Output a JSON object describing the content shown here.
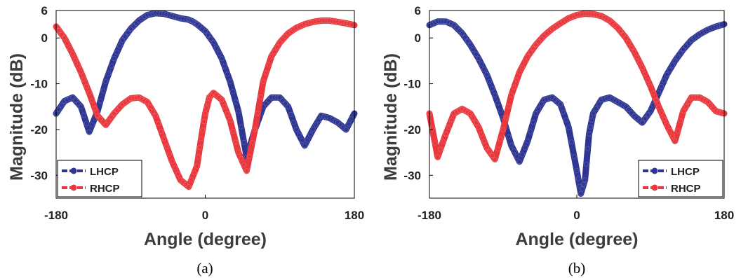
{
  "chart_data": [
    {
      "type": "line",
      "caption": "(a)",
      "xlabel": "Angle (degree)",
      "ylabel": "Magnitude (dB)",
      "xlim": [
        -180,
        180
      ],
      "ylim": [
        -35,
        6
      ],
      "xticks": [
        "-180",
        "0",
        "180"
      ],
      "yticks": [
        "6",
        "0",
        "-10",
        "-20",
        "-30"
      ],
      "legend_position": "bottom-left",
      "series": [
        {
          "name": "LHCP",
          "color": "#2e3592",
          "x": [
            -180,
            -170,
            -160,
            -150,
            -140,
            -130,
            -120,
            -110,
            -100,
            -90,
            -80,
            -70,
            -60,
            -50,
            -40,
            -30,
            -20,
            -15,
            -10,
            0,
            10,
            20,
            30,
            40,
            50,
            60,
            70,
            80,
            90,
            100,
            110,
            120,
            130,
            140,
            150,
            160,
            170,
            180
          ],
          "y": [
            -16.5,
            -13.8,
            -13.0,
            -15.0,
            -20.5,
            -16.0,
            -9.5,
            -4.5,
            -0.5,
            2.0,
            3.8,
            5.0,
            5.4,
            5.3,
            4.8,
            4.3,
            4.0,
            3.6,
            3.0,
            1.5,
            -1.0,
            -4.5,
            -9.5,
            -16.0,
            -26.0,
            -20.0,
            -15.0,
            -13.0,
            -13.0,
            -15.0,
            -20.0,
            -23.5,
            -20.0,
            -17.0,
            -17.5,
            -18.5,
            -20.0,
            -16.5
          ]
        },
        {
          "name": "RHCP",
          "color": "#e8383d",
          "x": [
            -180,
            -170,
            -160,
            -150,
            -140,
            -130,
            -120,
            -110,
            -100,
            -90,
            -80,
            -70,
            -60,
            -50,
            -40,
            -30,
            -20,
            -10,
            -5,
            0,
            5,
            10,
            20,
            30,
            40,
            50,
            60,
            70,
            80,
            90,
            100,
            110,
            120,
            130,
            140,
            150,
            160,
            170,
            180
          ],
          "y": [
            2.5,
            0.0,
            -3.5,
            -7.5,
            -12.0,
            -17.0,
            -19.0,
            -16.5,
            -14.5,
            -13.2,
            -13.0,
            -14.0,
            -17.0,
            -22.0,
            -27.0,
            -31.0,
            -32.5,
            -28.0,
            -22.0,
            -16.5,
            -13.0,
            -12.0,
            -13.5,
            -18.0,
            -25.0,
            -29.0,
            -20.0,
            -9.5,
            -4.0,
            -1.0,
            1.0,
            2.2,
            3.0,
            3.5,
            3.8,
            3.8,
            3.5,
            3.2,
            2.8
          ]
        }
      ]
    },
    {
      "type": "line",
      "caption": "(b)",
      "xlabel": "Angle (degree)",
      "ylabel": "Magnitude (dB)",
      "xlim": [
        -180,
        180
      ],
      "ylim": [
        -35,
        6
      ],
      "xticks": [
        "-180",
        "0",
        "180"
      ],
      "yticks": [
        "6",
        "0",
        "-10",
        "-20",
        "-30"
      ],
      "legend_position": "bottom-right",
      "series": [
        {
          "name": "LHCP",
          "color": "#2e3592",
          "x": [
            -180,
            -170,
            -160,
            -150,
            -140,
            -130,
            -120,
            -110,
            -100,
            -90,
            -80,
            -70,
            -60,
            -50,
            -40,
            -30,
            -20,
            -10,
            0,
            5,
            10,
            15,
            20,
            30,
            40,
            50,
            60,
            70,
            80,
            90,
            100,
            110,
            120,
            130,
            140,
            150,
            160,
            170,
            180
          ],
          "y": [
            2.8,
            3.6,
            3.6,
            2.8,
            1.0,
            -1.5,
            -4.5,
            -8.0,
            -12.5,
            -17.5,
            -23.5,
            -27.0,
            -22.5,
            -16.5,
            -13.5,
            -13.0,
            -14.5,
            -19.5,
            -29.0,
            -34.0,
            -31.0,
            -21.0,
            -16.5,
            -13.5,
            -13.0,
            -14.0,
            -15.0,
            -17.0,
            -18.5,
            -16.0,
            -12.0,
            -8.0,
            -5.0,
            -2.5,
            -0.5,
            0.8,
            1.8,
            2.5,
            3.0
          ]
        },
        {
          "name": "RHCP",
          "color": "#e8383d",
          "x": [
            -180,
            -170,
            -160,
            -150,
            -140,
            -130,
            -120,
            -110,
            -100,
            -90,
            -80,
            -70,
            -60,
            -50,
            -40,
            -30,
            -20,
            -10,
            0,
            10,
            20,
            30,
            40,
            50,
            60,
            70,
            80,
            90,
            100,
            110,
            120,
            130,
            140,
            150,
            160,
            170,
            180
          ],
          "y": [
            -16.5,
            -26.0,
            -21.0,
            -16.5,
            -15.5,
            -16.5,
            -19.5,
            -24.0,
            -26.5,
            -20.0,
            -12.5,
            -7.5,
            -4.0,
            -1.5,
            0.5,
            2.0,
            3.2,
            4.3,
            5.0,
            5.3,
            5.2,
            4.8,
            3.8,
            2.2,
            0.0,
            -3.0,
            -6.5,
            -10.5,
            -15.0,
            -19.0,
            -22.5,
            -16.0,
            -13.0,
            -13.0,
            -14.0,
            -16.0,
            -16.5
          ]
        }
      ]
    }
  ]
}
